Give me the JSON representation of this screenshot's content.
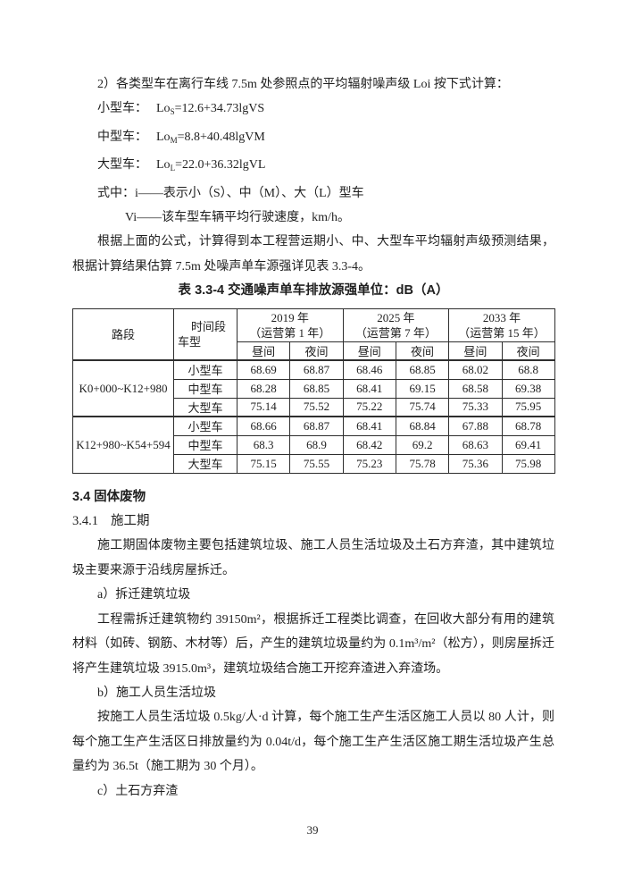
{
  "document": {
    "page_number": "39"
  },
  "noise_section": {
    "calc_line": "2）各类型车在离行车线 7.5m 处参照点的平均辐射噪声级 Loi 按下式计算：",
    "formulas": [
      {
        "label": "小型车：",
        "base": "Lo",
        "sub": "S",
        "expr": "=12.6+34.73lgVS"
      },
      {
        "label": "中型车：",
        "base": "Lo",
        "sub": "M",
        "expr": "=8.8+40.48lgVM"
      },
      {
        "label": "大型车：",
        "base": "Lo",
        "sub": "L",
        "expr": "=22.0+36.32lgVL"
      }
    ],
    "where_line_1": "式中：i——表示小（S）、中（M）、大（L）型车",
    "where_line_2": "Vi——该车型车辆平均行驶速度，km/h。",
    "result_para": "根据上面的公式，计算得到本工程营运期小、中、大型车平均辐射声级预测结果，根据计算结果估算 7.5m 处噪声单车源强详见表 3.3-4。"
  },
  "table": {
    "title": "表 3.3-4 交通噪声单车排放源强单位：dB（A）",
    "header": {
      "road": "路段",
      "corner_top": "时间段",
      "corner_bottom": "车型",
      "year_groups": [
        {
          "year": "2019 年",
          "note": "（运营第 1 年）"
        },
        {
          "year": "2025 年",
          "note": "（运营第 7 年）"
        },
        {
          "year": "2033 年",
          "note": "（运营第 15 年）"
        }
      ],
      "day": "昼间",
      "night": "夜间"
    },
    "sections": [
      {
        "road": "K0+000~K12+980",
        "rows": [
          {
            "vehicle": "小型车",
            "values": [
              "68.69",
              "68.87",
              "68.46",
              "68.85",
              "68.02",
              "68.8"
            ]
          },
          {
            "vehicle": "中型车",
            "values": [
              "68.28",
              "68.85",
              "68.41",
              "69.15",
              "68.58",
              "69.38"
            ]
          },
          {
            "vehicle": "大型车",
            "values": [
              "75.14",
              "75.52",
              "75.22",
              "75.74",
              "75.33",
              "75.95"
            ]
          }
        ]
      },
      {
        "road": "K12+980~K54+594",
        "rows": [
          {
            "vehicle": "小型车",
            "values": [
              "68.66",
              "68.87",
              "68.41",
              "68.84",
              "67.88",
              "68.78"
            ]
          },
          {
            "vehicle": "中型车",
            "values": [
              "68.3",
              "68.9",
              "68.42",
              "69.2",
              "68.63",
              "69.41"
            ]
          },
          {
            "vehicle": "大型车",
            "values": [
              "75.15",
              "75.55",
              "75.23",
              "75.78",
              "75.36",
              "75.98"
            ]
          }
        ]
      }
    ]
  },
  "solid_waste": {
    "heading": "3.4 固体废物",
    "sub_heading_num": "3.4.1",
    "sub_heading_text": "施工期",
    "intro_para": "施工期固体废物主要包括建筑垃圾、施工人员生活垃圾及土石方弃渣，其中建筑垃圾主要来源于沿线房屋拆迁。",
    "item_a_title": "a）拆迁建筑垃圾",
    "item_a_para": "工程需拆迁建筑物约 39150m²，根据拆迁工程类比调查，在回收大部分有用的建筑材料（如砖、钢筋、木材等）后，产生的建筑垃圾量约为 0.1m³/m²（松方），则房屋拆迁将产生建筑垃圾 3915.0m³，建筑垃圾结合施工开挖弃渣进入弃渣场。",
    "item_b_title": "b）施工人员生活垃圾",
    "item_b_para": "按施工人员生活垃圾 0.5kg/人·d 计算，每个施工生产生活区施工人员以 80 人计，则每个施工生产生活区日排放量约为 0.04t/d，每个施工生产生活区施工期生活垃圾产生总量约为 36.5t（施工期为 30 个月）。",
    "item_c_title": "c）土石方弃渣"
  }
}
